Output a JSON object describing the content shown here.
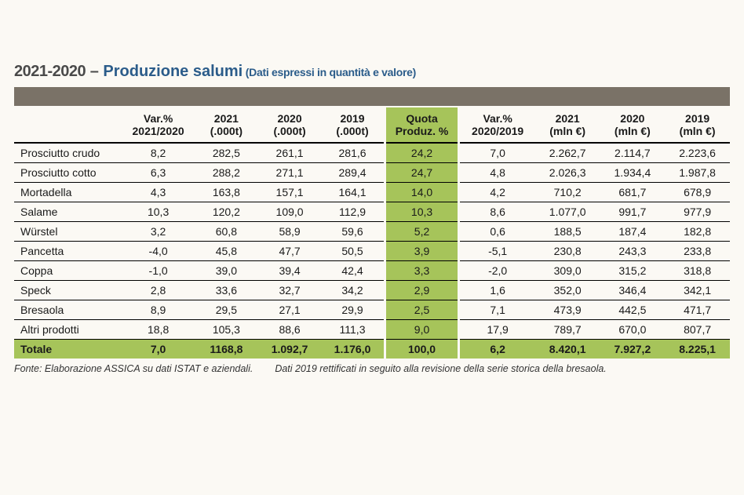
{
  "title": {
    "years": "2021-2020",
    "dash": " – ",
    "main": "Produzione salumi",
    "sub": " (Dati espressi in quantità e valore)"
  },
  "table": {
    "type": "table",
    "background_color": "#fbf9f4",
    "band_color": "#7a7267",
    "highlight_color": "#a6c45a",
    "text_color": "#1a1a1a",
    "header_fontweight": 700,
    "body_fontsize_pt": 11,
    "columns": [
      {
        "key": "name",
        "l1": "",
        "l2": "",
        "align": "left"
      },
      {
        "key": "var1",
        "l1": "Var.%",
        "l2": "2021/2020",
        "align": "center"
      },
      {
        "key": "y2021t",
        "l1": "2021",
        "l2": "(.000t)",
        "align": "center"
      },
      {
        "key": "y2020t",
        "l1": "2020",
        "l2": "(.000t)",
        "align": "center"
      },
      {
        "key": "y2019t",
        "l1": "2019",
        "l2": "(.000t)",
        "align": "center"
      },
      {
        "key": "quota",
        "l1": "Quota",
        "l2": "Produz. %",
        "align": "center",
        "highlight": true
      },
      {
        "key": "var2",
        "l1": "Var.%",
        "l2": "2020/2019",
        "align": "center"
      },
      {
        "key": "y2021e",
        "l1": "2021",
        "l2": "(mln €)",
        "align": "center"
      },
      {
        "key": "y2020e",
        "l1": "2020",
        "l2": "(mln €)",
        "align": "center"
      },
      {
        "key": "y2019e",
        "l1": "2019",
        "l2": "(mln €)",
        "align": "center"
      }
    ],
    "rows": [
      {
        "name": "Prosciutto crudo",
        "var1": "8,2",
        "y2021t": "282,5",
        "y2020t": "261,1",
        "y2019t": "281,6",
        "quota": "24,2",
        "var2": "7,0",
        "y2021e": "2.262,7",
        "y2020e": "2.114,7",
        "y2019e": "2.223,6"
      },
      {
        "name": "Prosciutto cotto",
        "var1": "6,3",
        "y2021t": "288,2",
        "y2020t": "271,1",
        "y2019t": "289,4",
        "quota": "24,7",
        "var2": "4,8",
        "y2021e": "2.026,3",
        "y2020e": "1.934,4",
        "y2019e": "1.987,8"
      },
      {
        "name": "Mortadella",
        "var1": "4,3",
        "y2021t": "163,8",
        "y2020t": "157,1",
        "y2019t": "164,1",
        "quota": "14,0",
        "var2": "4,2",
        "y2021e": "710,2",
        "y2020e": "681,7",
        "y2019e": "678,9"
      },
      {
        "name": "Salame",
        "var1": "10,3",
        "y2021t": "120,2",
        "y2020t": "109,0",
        "y2019t": "112,9",
        "quota": "10,3",
        "var2": "8,6",
        "y2021e": "1.077,0",
        "y2020e": "991,7",
        "y2019e": "977,9"
      },
      {
        "name": "Würstel",
        "var1": "3,2",
        "y2021t": "60,8",
        "y2020t": "58,9",
        "y2019t": "59,6",
        "quota": "5,2",
        "var2": "0,6",
        "y2021e": "188,5",
        "y2020e": "187,4",
        "y2019e": "182,8"
      },
      {
        "name": "Pancetta",
        "var1": "-4,0",
        "y2021t": "45,8",
        "y2020t": "47,7",
        "y2019t": "50,5",
        "quota": "3,9",
        "var2": "-5,1",
        "y2021e": "230,8",
        "y2020e": "243,3",
        "y2019e": "233,8"
      },
      {
        "name": "Coppa",
        "var1": "-1,0",
        "y2021t": "39,0",
        "y2020t": "39,4",
        "y2019t": "42,4",
        "quota": "3,3",
        "var2": "-2,0",
        "y2021e": "309,0",
        "y2020e": "315,2",
        "y2019e": "318,8"
      },
      {
        "name": "Speck",
        "var1": "2,8",
        "y2021t": "33,6",
        "y2020t": "32,7",
        "y2019t": "34,2",
        "quota": "2,9",
        "var2": "1,6",
        "y2021e": "352,0",
        "y2020e": "346,4",
        "y2019e": "342,1"
      },
      {
        "name": "Bresaola",
        "var1": "8,9",
        "y2021t": "29,5",
        "y2020t": "27,1",
        "y2019t": "29,9",
        "quota": "2,5",
        "var2": "7,1",
        "y2021e": "473,9",
        "y2020e": "442,5",
        "y2019e": "471,7"
      },
      {
        "name": "Altri prodotti",
        "var1": "18,8",
        "y2021t": "105,3",
        "y2020t": "88,6",
        "y2019t": "111,3",
        "quota": "9,0",
        "var2": "17,9",
        "y2021e": "789,7",
        "y2020e": "670,0",
        "y2019e": "807,7"
      }
    ],
    "total": {
      "name": "Totale",
      "var1": "7,0",
      "y2021t": "1168,8",
      "y2020t": "1.092,7",
      "y2019t": "1.176,0",
      "quota": "100,0",
      "var2": "6,2",
      "y2021e": "8.420,1",
      "y2020e": "7.927,2",
      "y2019e": "8.225,1"
    }
  },
  "footnote": {
    "a": "Fonte: Elaborazione ASSICA su dati ISTAT e aziendali.",
    "b": "Dati 2019 rettificati in seguito alla revisione della serie storica della bresaola."
  }
}
